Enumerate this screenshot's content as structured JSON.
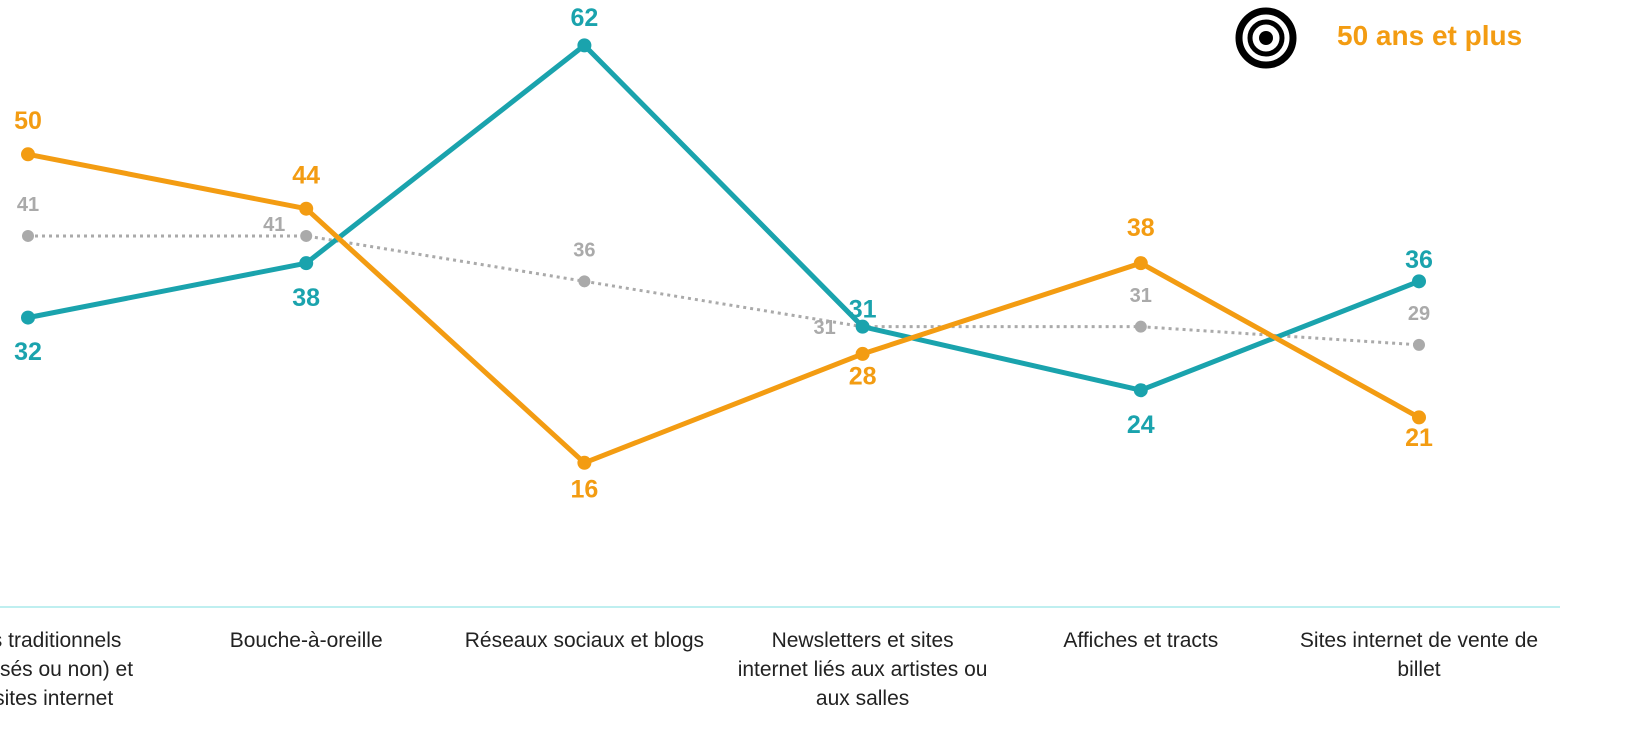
{
  "chart_data": {
    "type": "line",
    "categories": [
      "Médias traditionnels (spécialisés ou non) et leurs sites internet",
      "Bouche-à-oreille",
      "Réseaux sociaux et blogs",
      "Newsletters et sites internet liés aux artistes ou aux salles",
      "Affiches et tracts",
      "Sites internet de vente de billet"
    ],
    "series": [
      {
        "name": "50 ans et plus",
        "color": "#f39c12",
        "values": [
          50,
          44,
          16,
          28,
          38,
          21
        ]
      },
      {
        "color": "#1aa3ad",
        "values": [
          32,
          38,
          62,
          31,
          24,
          36
        ]
      },
      {
        "color": "#aaaaaa",
        "values": [
          41,
          41,
          36,
          31,
          31,
          29
        ]
      }
    ],
    "ylim": [
      0,
      67
    ]
  }
}
